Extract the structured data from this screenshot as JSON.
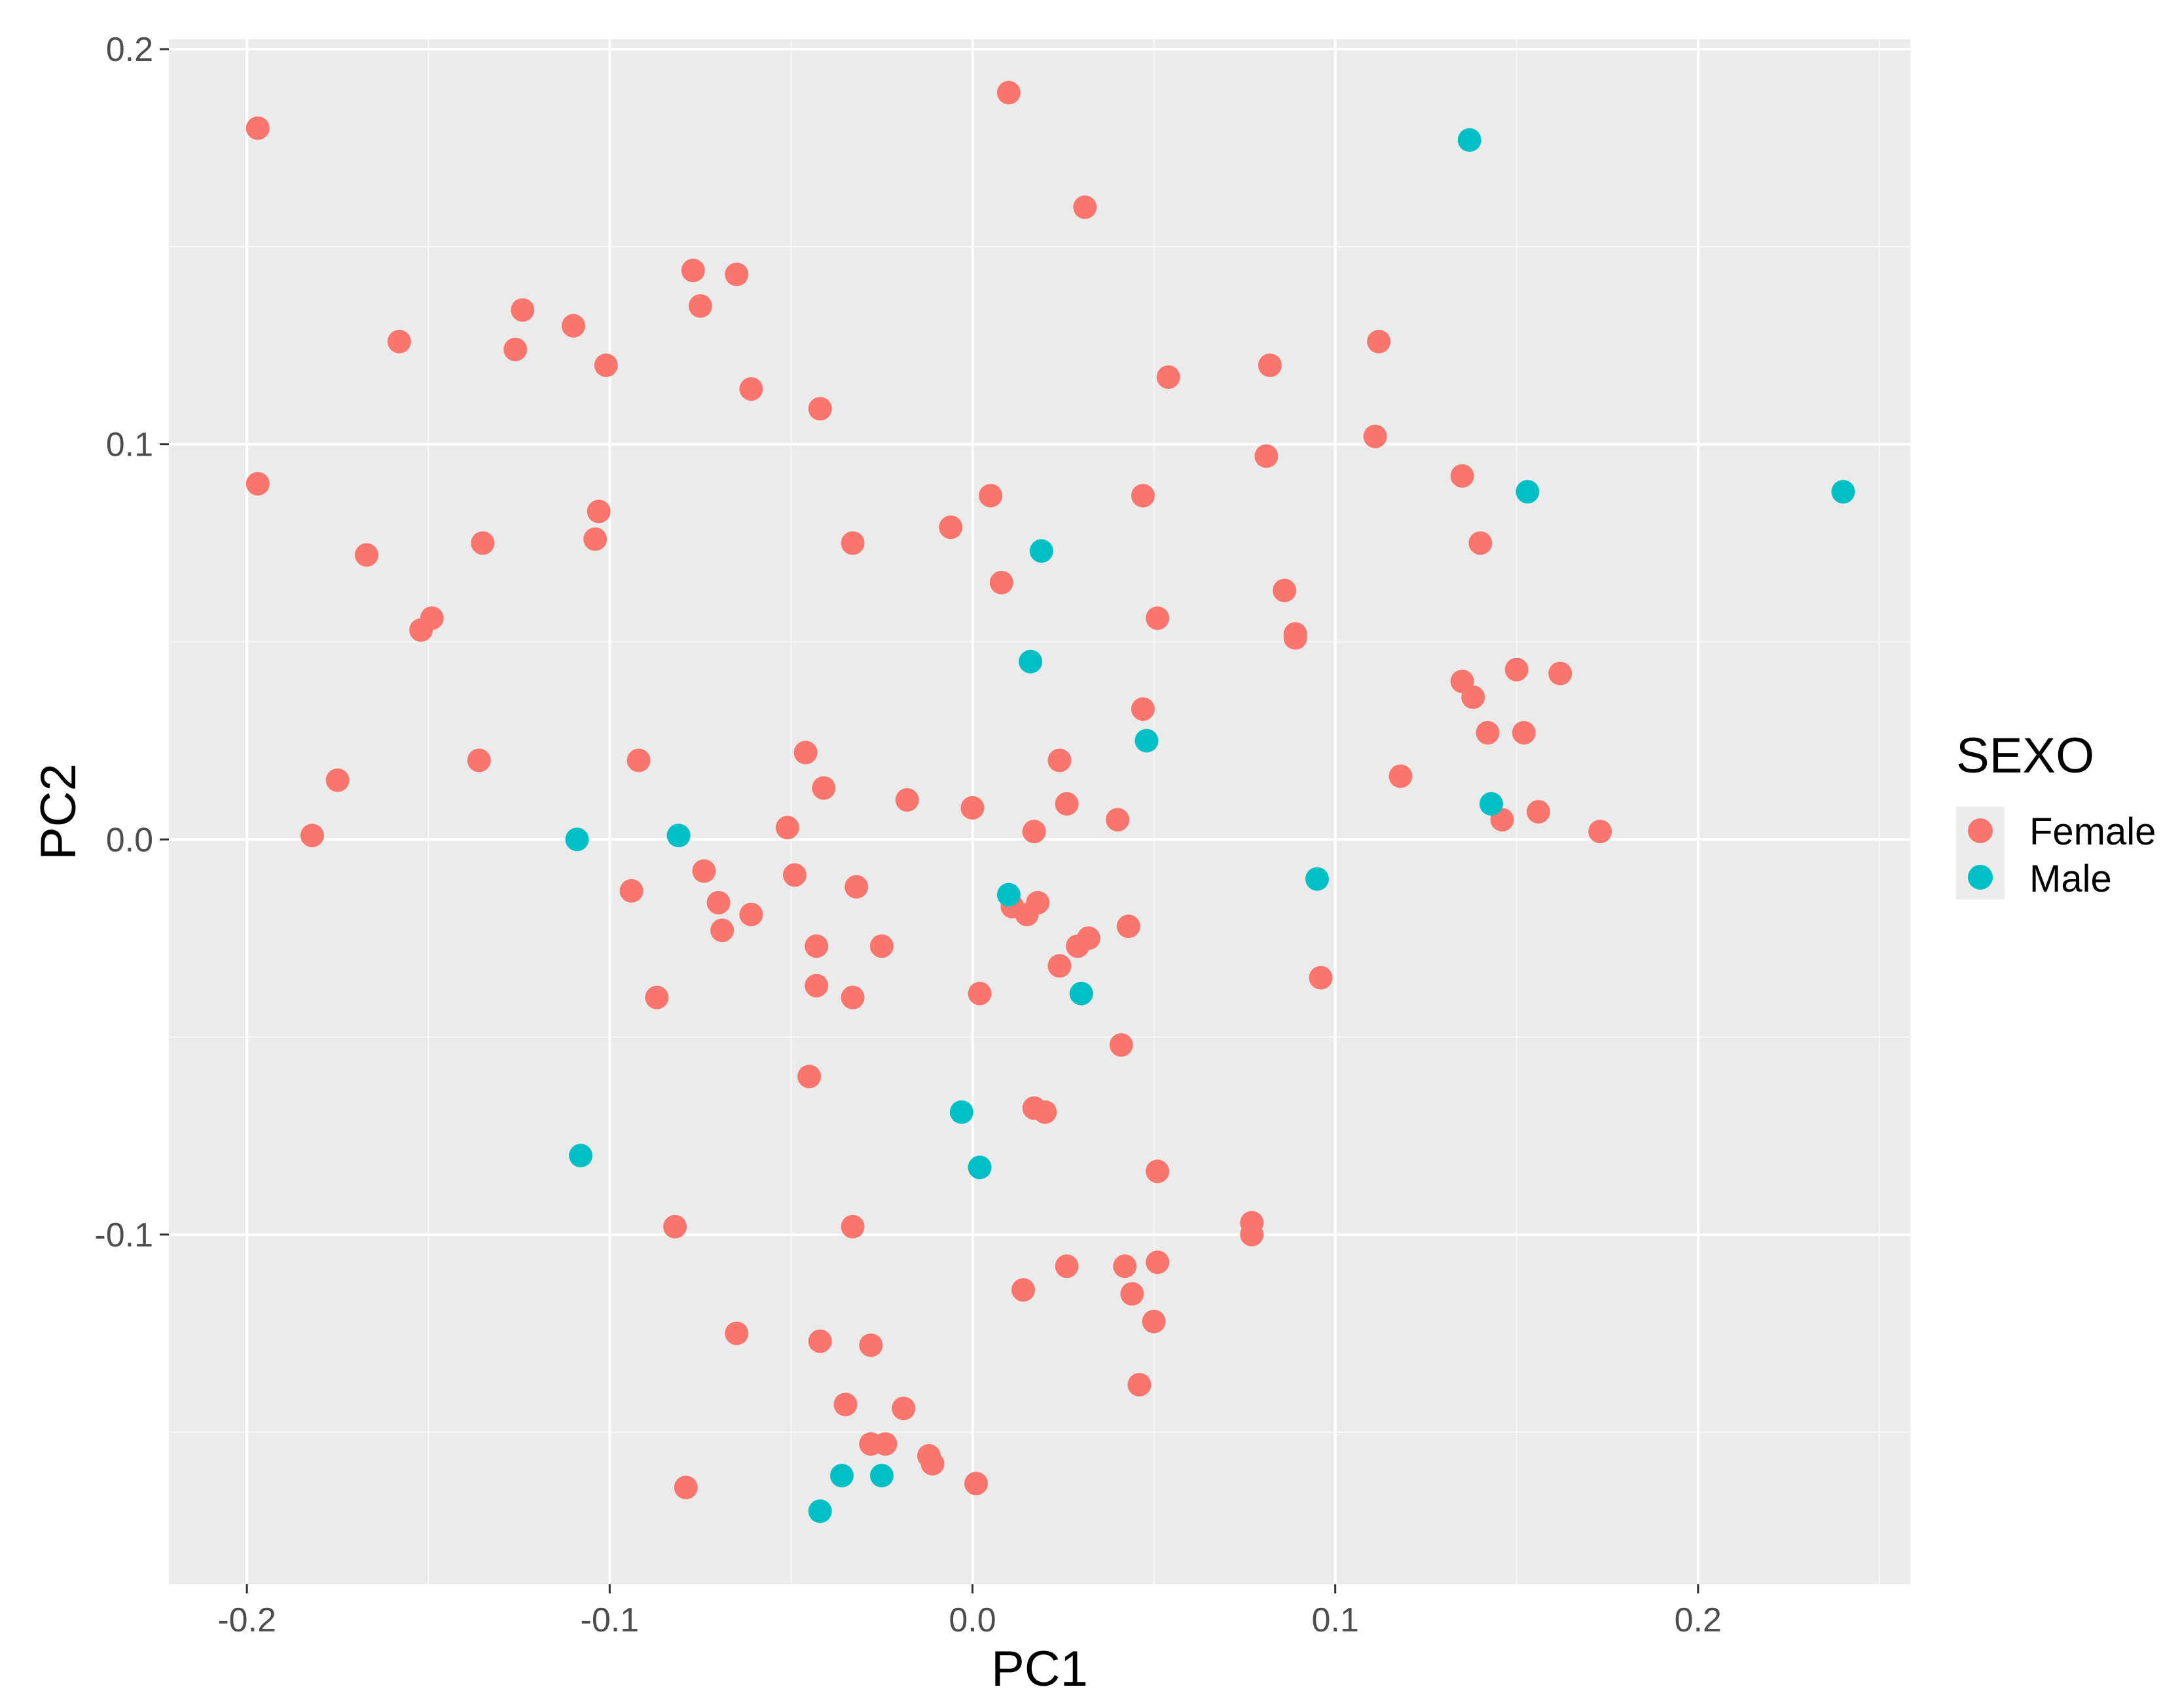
{
  "chart_data": {
    "type": "scatter",
    "title": "",
    "xlabel": "PC1",
    "ylabel": "PC2",
    "xlim": [
      -0.2215,
      0.2585
    ],
    "ylim": [
      -0.1885,
      0.2025
    ],
    "x_ticks": [
      -0.2,
      -0.1,
      0.0,
      0.1,
      0.2
    ],
    "y_ticks": [
      -0.1,
      0.0,
      0.1,
      0.2
    ],
    "x_tick_labels": [
      "-0.2",
      "-0.1",
      "0.0",
      "0.1",
      "0.2"
    ],
    "y_tick_labels": [
      "-0.1",
      "0.0",
      "0.1",
      "0.2"
    ],
    "grid": true,
    "background": "#ebebeb",
    "legend": {
      "title": "SEXO",
      "position": "right",
      "entries": [
        {
          "label": "Female",
          "color": "#F8766D"
        },
        {
          "label": "Male",
          "color": "#00BFC4"
        }
      ]
    },
    "series": [
      {
        "name": "Female",
        "color": "#F8766D",
        "points": [
          [
            0.01,
            0.189
          ],
          [
            -0.197,
            0.18
          ],
          [
            0.031,
            0.16
          ],
          [
            -0.077,
            0.144
          ],
          [
            -0.065,
            0.143
          ],
          [
            -0.124,
            0.134
          ],
          [
            -0.075,
            0.135
          ],
          [
            -0.11,
            0.13
          ],
          [
            -0.158,
            0.126
          ],
          [
            0.112,
            0.126
          ],
          [
            -0.126,
            0.124
          ],
          [
            -0.101,
            0.12
          ],
          [
            0.082,
            0.12
          ],
          [
            0.054,
            0.117
          ],
          [
            -0.061,
            0.114
          ],
          [
            -0.042,
            0.109
          ],
          [
            0.111,
            0.102
          ],
          [
            0.081,
            0.097
          ],
          [
            0.135,
            0.092
          ],
          [
            -0.197,
            0.09
          ],
          [
            0.005,
            0.087
          ],
          [
            0.047,
            0.087
          ],
          [
            -0.103,
            0.083
          ],
          [
            -0.006,
            0.079
          ],
          [
            -0.104,
            0.076
          ],
          [
            -0.135,
            0.075
          ],
          [
            -0.033,
            0.075
          ],
          [
            0.14,
            0.075
          ],
          [
            -0.167,
            0.072
          ],
          [
            0.008,
            0.065
          ],
          [
            0.086,
            0.063
          ],
          [
            -0.149,
            0.056
          ],
          [
            -0.152,
            0.053
          ],
          [
            0.051,
            0.056
          ],
          [
            0.089,
            0.052
          ],
          [
            0.089,
            0.051
          ],
          [
            0.15,
            0.043
          ],
          [
            0.162,
            0.042
          ],
          [
            0.135,
            0.04
          ],
          [
            0.138,
            0.036
          ],
          [
            0.047,
            0.033
          ],
          [
            0.142,
            0.027
          ],
          [
            0.152,
            0.027
          ],
          [
            -0.046,
            0.022
          ],
          [
            -0.136,
            0.02
          ],
          [
            -0.092,
            0.02
          ],
          [
            0.024,
            0.02
          ],
          [
            -0.175,
            0.015
          ],
          [
            0.118,
            0.016
          ],
          [
            -0.041,
            0.013
          ],
          [
            -0.018,
            0.01
          ],
          [
            0.026,
            0.009
          ],
          [
            0.0,
            0.008
          ],
          [
            0.156,
            0.007
          ],
          [
            0.04,
            0.005
          ],
          [
            0.146,
            0.005
          ],
          [
            -0.051,
            0.003
          ],
          [
            -0.182,
            0.001
          ],
          [
            0.017,
            0.002
          ],
          [
            0.173,
            0.002
          ],
          [
            -0.049,
            -0.009
          ],
          [
            -0.074,
            -0.008
          ],
          [
            -0.094,
            -0.013
          ],
          [
            -0.032,
            -0.012
          ],
          [
            -0.07,
            -0.016
          ],
          [
            -0.061,
            -0.019
          ],
          [
            0.011,
            -0.017
          ],
          [
            0.015,
            -0.019
          ],
          [
            0.018,
            -0.016
          ],
          [
            -0.069,
            -0.023
          ],
          [
            0.043,
            -0.022
          ],
          [
            -0.043,
            -0.027
          ],
          [
            -0.025,
            -0.027
          ],
          [
            0.032,
            -0.025
          ],
          [
            0.029,
            -0.027
          ],
          [
            0.024,
            -0.032
          ],
          [
            -0.043,
            -0.037
          ],
          [
            0.096,
            -0.035
          ],
          [
            -0.087,
            -0.04
          ],
          [
            -0.033,
            -0.04
          ],
          [
            0.002,
            -0.039
          ],
          [
            0.041,
            -0.052
          ],
          [
            -0.045,
            -0.06
          ],
          [
            0.017,
            -0.068
          ],
          [
            0.02,
            -0.069
          ],
          [
            0.051,
            -0.084
          ],
          [
            -0.082,
            -0.098
          ],
          [
            -0.033,
            -0.098
          ],
          [
            0.077,
            -0.097
          ],
          [
            0.077,
            -0.1
          ],
          [
            0.026,
            -0.108
          ],
          [
            0.042,
            -0.108
          ],
          [
            0.051,
            -0.107
          ],
          [
            0.014,
            -0.114
          ],
          [
            0.044,
            -0.115
          ],
          [
            0.05,
            -0.122
          ],
          [
            -0.065,
            -0.125
          ],
          [
            -0.042,
            -0.127
          ],
          [
            -0.028,
            -0.128
          ],
          [
            0.046,
            -0.138
          ],
          [
            -0.035,
            -0.143
          ],
          [
            -0.019,
            -0.144
          ],
          [
            -0.028,
            -0.153
          ],
          [
            -0.024,
            -0.153
          ],
          [
            -0.012,
            -0.156
          ],
          [
            -0.011,
            -0.158
          ],
          [
            -0.079,
            -0.164
          ],
          [
            0.001,
            -0.163
          ]
        ]
      },
      {
        "name": "Male",
        "color": "#00BFC4",
        "points": [
          [
            0.137,
            0.177
          ],
          [
            0.153,
            0.088
          ],
          [
            0.24,
            0.088
          ],
          [
            0.019,
            0.073
          ],
          [
            0.016,
            0.045
          ],
          [
            0.048,
            0.025
          ],
          [
            0.143,
            0.009
          ],
          [
            -0.109,
            0.0
          ],
          [
            -0.081,
            0.001
          ],
          [
            0.01,
            -0.014
          ],
          [
            0.095,
            -0.01
          ],
          [
            0.03,
            -0.039
          ],
          [
            -0.108,
            -0.08
          ],
          [
            -0.003,
            -0.069
          ],
          [
            0.002,
            -0.083
          ],
          [
            -0.036,
            -0.161
          ],
          [
            -0.025,
            -0.161
          ],
          [
            -0.042,
            -0.17
          ]
        ]
      }
    ]
  }
}
